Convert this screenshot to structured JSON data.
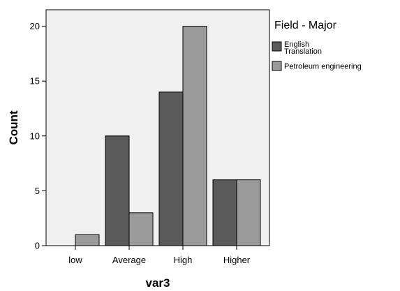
{
  "chart_data": {
    "type": "bar",
    "xlabel": "var3",
    "ylabel": "Count",
    "categories": [
      "low",
      "Average",
      "High",
      "Higher"
    ],
    "series": [
      {
        "name": "English Translation",
        "values": [
          0,
          10,
          14,
          6
        ],
        "color": "#5a5a5a"
      },
      {
        "name": "Petroleum engineering",
        "values": [
          1,
          3,
          20,
          6
        ],
        "color": "#9b9b9b"
      }
    ],
    "ylim": [
      0,
      21.5
    ],
    "yticks": [
      0,
      5,
      10,
      15,
      20
    ],
    "grid": false,
    "plot_background": "#f0f0f0",
    "legend": {
      "title": "Field - Major",
      "placement": "right",
      "entries": [
        {
          "label_lines": [
            "English",
            "Translation"
          ],
          "color": "#5a5a5a"
        },
        {
          "label_lines": [
            "Petroleum engineering"
          ],
          "color": "#9b9b9b"
        }
      ]
    }
  }
}
